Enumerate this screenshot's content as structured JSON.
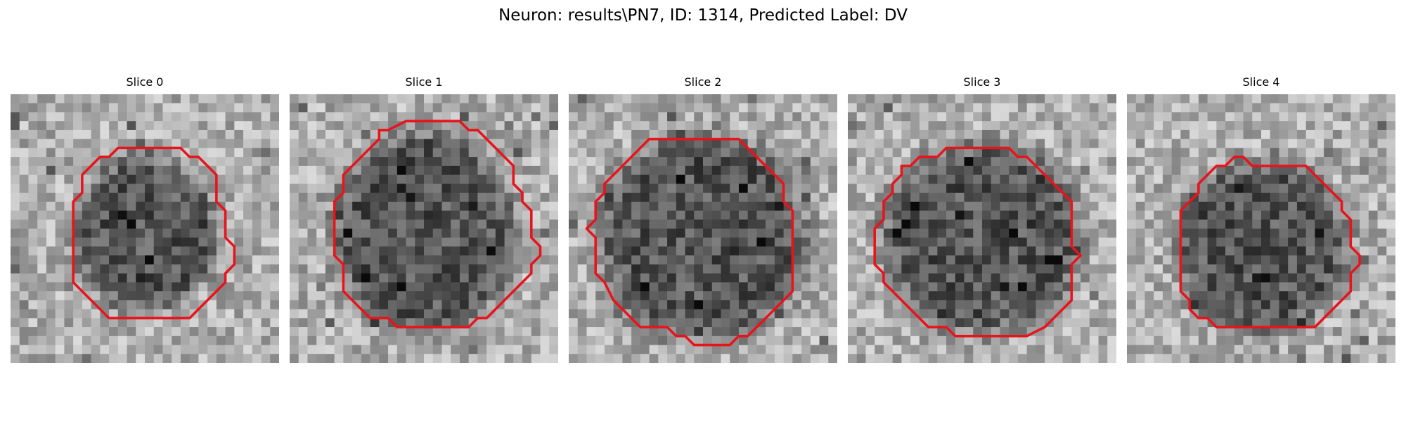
{
  "figure": {
    "title": "Neuron: results\\PN7, ID: 1314, Predicted Label: DV"
  },
  "colors": {
    "contour": "#e8141c",
    "background": "#ffffff"
  },
  "slices": [
    {
      "label": "Slice 0",
      "seed": 11,
      "cell": {
        "cx": 15.0,
        "cy": 15.5,
        "rx": 8.0,
        "ry": 8.5
      },
      "contour_grid": [
        [
          13,
          6
        ],
        [
          19,
          6
        ],
        [
          20,
          7
        ],
        [
          21,
          7
        ],
        [
          22,
          8
        ],
        [
          23,
          9
        ],
        [
          23,
          12
        ],
        [
          24,
          13
        ],
        [
          24,
          16
        ],
        [
          25,
          17
        ],
        [
          25,
          19
        ],
        [
          24,
          20
        ],
        [
          24,
          21
        ],
        [
          23,
          22
        ],
        [
          22,
          23
        ],
        [
          21,
          24
        ],
        [
          20,
          25
        ],
        [
          19,
          25
        ],
        [
          11,
          25
        ],
        [
          10,
          24
        ],
        [
          9,
          23
        ],
        [
          8,
          22
        ],
        [
          7,
          21
        ],
        [
          7,
          12
        ],
        [
          8,
          11
        ],
        [
          8,
          9
        ],
        [
          9,
          8
        ],
        [
          10,
          7
        ],
        [
          11,
          7
        ],
        [
          12,
          6
        ]
      ]
    },
    {
      "label": "Slice 1",
      "seed": 23,
      "cell": {
        "cx": 15.0,
        "cy": 15.5,
        "rx": 10.0,
        "ry": 11.0
      },
      "contour_grid": [
        [
          11,
          4
        ],
        [
          13,
          3
        ],
        [
          19,
          3
        ],
        [
          20,
          4
        ],
        [
          21,
          4
        ],
        [
          22,
          5
        ],
        [
          23,
          6
        ],
        [
          24,
          7
        ],
        [
          25,
          8
        ],
        [
          25,
          10
        ],
        [
          26,
          11
        ],
        [
          26,
          12
        ],
        [
          27,
          13
        ],
        [
          27,
          16
        ],
        [
          28,
          17
        ],
        [
          28,
          18
        ],
        [
          27,
          19
        ],
        [
          27,
          20
        ],
        [
          26,
          21
        ],
        [
          25,
          22
        ],
        [
          24,
          23
        ],
        [
          23,
          24
        ],
        [
          22,
          25
        ],
        [
          21,
          25
        ],
        [
          20,
          26
        ],
        [
          12,
          26
        ],
        [
          11,
          25
        ],
        [
          9,
          25
        ],
        [
          8,
          24
        ],
        [
          7,
          23
        ],
        [
          6,
          22
        ],
        [
          6,
          19
        ],
        [
          5,
          18
        ],
        [
          5,
          12
        ],
        [
          6,
          11
        ],
        [
          6,
          9
        ],
        [
          7,
          8
        ],
        [
          8,
          7
        ],
        [
          9,
          6
        ],
        [
          10,
          5
        ],
        [
          10,
          4
        ]
      ]
    },
    {
      "label": "Slice 2",
      "seed": 37,
      "cell": {
        "cx": 15.0,
        "cy": 16.0,
        "rx": 11.5,
        "ry": 11.5
      },
      "contour_grid": [
        [
          9,
          5
        ],
        [
          19,
          5
        ],
        [
          20,
          6
        ],
        [
          21,
          7
        ],
        [
          22,
          8
        ],
        [
          23,
          9
        ],
        [
          24,
          10
        ],
        [
          24,
          12
        ],
        [
          25,
          13
        ],
        [
          25,
          22
        ],
        [
          24,
          23
        ],
        [
          23,
          24
        ],
        [
          22,
          25
        ],
        [
          21,
          26
        ],
        [
          20,
          27
        ],
        [
          19,
          27
        ],
        [
          18,
          28
        ],
        [
          14,
          28
        ],
        [
          13,
          27
        ],
        [
          12,
          27
        ],
        [
          11,
          26
        ],
        [
          8,
          26
        ],
        [
          7,
          25
        ],
        [
          6,
          24
        ],
        [
          5,
          23
        ],
        [
          4,
          21
        ],
        [
          3,
          20
        ],
        [
          3,
          16
        ],
        [
          2,
          15
        ],
        [
          3,
          14
        ],
        [
          3,
          12
        ],
        [
          4,
          11
        ],
        [
          4,
          10
        ],
        [
          5,
          9
        ],
        [
          6,
          8
        ],
        [
          7,
          7
        ],
        [
          8,
          6
        ]
      ]
    },
    {
      "label": "Slice 3",
      "seed": 49,
      "cell": {
        "cx": 15.0,
        "cy": 16.0,
        "rx": 11.0,
        "ry": 10.5
      },
      "contour_grid": [
        [
          11,
          6
        ],
        [
          18,
          6
        ],
        [
          19,
          7
        ],
        [
          20,
          7
        ],
        [
          21,
          8
        ],
        [
          22,
          9
        ],
        [
          23,
          10
        ],
        [
          24,
          11
        ],
        [
          25,
          12
        ],
        [
          25,
          17
        ],
        [
          26,
          18
        ],
        [
          25,
          19
        ],
        [
          25,
          23
        ],
        [
          24,
          24
        ],
        [
          23,
          25
        ],
        [
          22,
          26
        ],
        [
          20,
          27
        ],
        [
          12,
          27
        ],
        [
          11,
          26
        ],
        [
          9,
          26
        ],
        [
          8,
          25
        ],
        [
          7,
          24
        ],
        [
          6,
          23
        ],
        [
          5,
          22
        ],
        [
          4,
          21
        ],
        [
          4,
          20
        ],
        [
          3,
          19
        ],
        [
          3,
          15
        ],
        [
          4,
          14
        ],
        [
          4,
          12
        ],
        [
          5,
          11
        ],
        [
          5,
          10
        ],
        [
          6,
          9
        ],
        [
          6,
          8
        ],
        [
          7,
          8
        ],
        [
          8,
          7
        ],
        [
          10,
          7
        ]
      ]
    },
    {
      "label": "Slice 4",
      "seed": 61,
      "cell": {
        "cx": 15.0,
        "cy": 17.0,
        "rx": 9.5,
        "ry": 9.5
      },
      "contour_grid": [
        [
          10,
          8
        ],
        [
          11,
          8
        ],
        [
          12,
          7
        ],
        [
          13,
          7
        ],
        [
          14,
          8
        ],
        [
          20,
          8
        ],
        [
          21,
          9
        ],
        [
          22,
          10
        ],
        [
          23,
          11
        ],
        [
          24,
          12
        ],
        [
          24,
          13
        ],
        [
          25,
          14
        ],
        [
          25,
          17
        ],
        [
          26,
          18
        ],
        [
          26,
          19
        ],
        [
          25,
          20
        ],
        [
          25,
          22
        ],
        [
          24,
          23
        ],
        [
          23,
          24
        ],
        [
          22,
          25
        ],
        [
          21,
          26
        ],
        [
          10,
          26
        ],
        [
          9,
          25
        ],
        [
          8,
          25
        ],
        [
          7,
          24
        ],
        [
          7,
          23
        ],
        [
          6,
          22
        ],
        [
          6,
          13
        ],
        [
          7,
          12
        ],
        [
          8,
          11
        ],
        [
          8,
          10
        ],
        [
          9,
          9
        ]
      ]
    }
  ]
}
